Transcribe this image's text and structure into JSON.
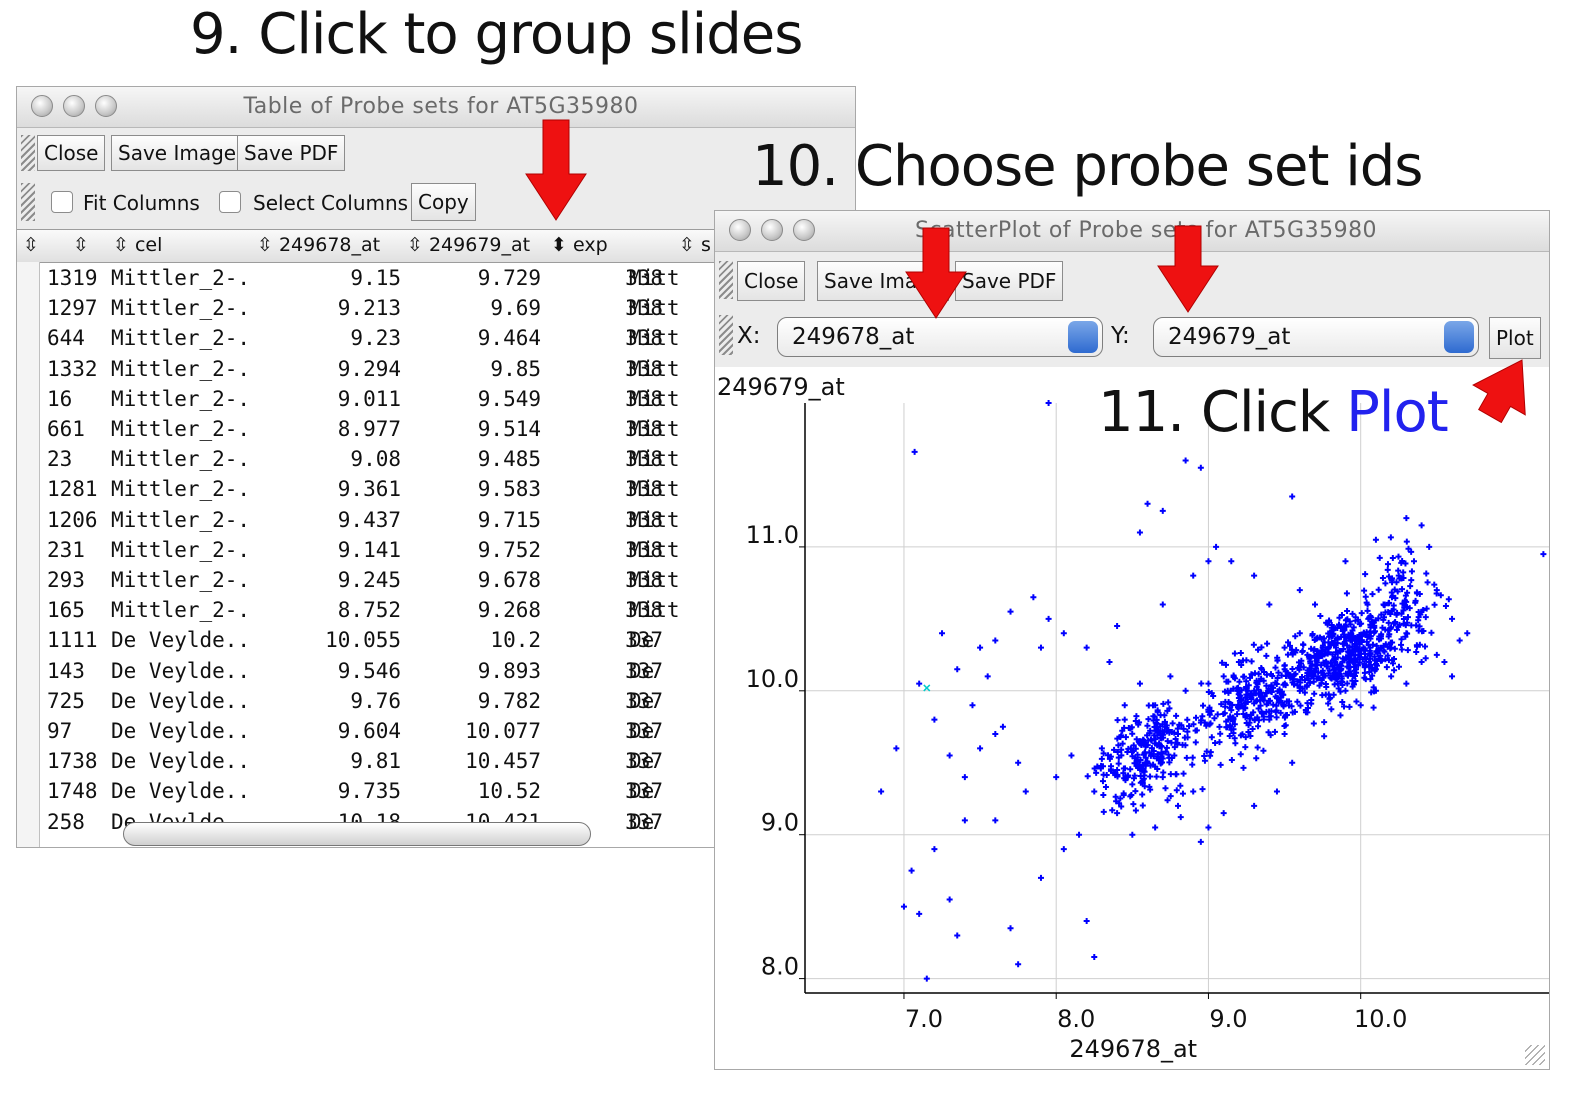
{
  "callouts": {
    "step9": "9. Click to group slides",
    "step10": "10. Choose probe set ids",
    "step11_prefix": "11. Click ",
    "step11_highlight": "Plot"
  },
  "table_window": {
    "title": "Table of Probe sets for AT5G35980",
    "toolbar": {
      "close": "Close",
      "save_image": "Save Image",
      "save_pdf": "Save PDF"
    },
    "options": {
      "fit_columns": "Fit Columns",
      "select_columns": "Select Columns",
      "copy": "Copy"
    },
    "columns": [
      "",
      "cel",
      "249678_at",
      "249679_at",
      "exp",
      "s"
    ],
    "rows": [
      [
        "1319",
        "Mittler_2-...",
        "9.15",
        "9.729",
        "338",
        "Mitt"
      ],
      [
        "1297",
        "Mittler_2-...",
        "9.213",
        "9.69",
        "338",
        "Mitt"
      ],
      [
        "644",
        "Mittler_2-...",
        "9.23",
        "9.464",
        "338",
        "Mitt"
      ],
      [
        "1332",
        "Mittler_2-...",
        "9.294",
        "9.85",
        "338",
        "Mitt"
      ],
      [
        "16",
        "Mittler_2-...",
        "9.011",
        "9.549",
        "338",
        "Mitt"
      ],
      [
        "661",
        "Mittler_2-...",
        "8.977",
        "9.514",
        "338",
        "Mitt"
      ],
      [
        "23",
        "Mittler_2-...",
        "9.08",
        "9.485",
        "338",
        "Mitt"
      ],
      [
        "1281",
        "Mittler_2-...",
        "9.361",
        "9.583",
        "338",
        "Mitt"
      ],
      [
        "1206",
        "Mittler_2-...",
        "9.437",
        "9.715",
        "338",
        "Mitt"
      ],
      [
        "231",
        "Mittler_2-...",
        "9.141",
        "9.752",
        "338",
        "Mitt"
      ],
      [
        "293",
        "Mittler_2-...",
        "9.245",
        "9.678",
        "338",
        "Mitt"
      ],
      [
        "165",
        "Mittler_2-...",
        "8.752",
        "9.268",
        "338",
        "Mitt"
      ],
      [
        "1111",
        "De Veylde...",
        "10.055",
        "10.2",
        "337",
        "De"
      ],
      [
        "143",
        "De Veylde...",
        "9.546",
        "9.893",
        "337",
        "De"
      ],
      [
        "725",
        "De Veylde...",
        "9.76",
        "9.782",
        "337",
        "De"
      ],
      [
        "97",
        "De Veylde...",
        "9.604",
        "10.077",
        "337",
        "De"
      ],
      [
        "1738",
        "De Veylde...",
        "9.81",
        "10.457",
        "337",
        "De"
      ],
      [
        "1748",
        "De Veylde...",
        "9.735",
        "10.52",
        "337",
        "De"
      ],
      [
        "258",
        "De Veylde...",
        "10.18",
        "10.421",
        "337",
        "De"
      ]
    ]
  },
  "scatter_window": {
    "title": "ScatterPlot of Probe sets for AT5G35980",
    "toolbar": {
      "close": "Close",
      "save_image": "Save Image",
      "save_pdf": "Save PDF"
    },
    "x_label": "X:",
    "x_value": "249678_at",
    "y_label": "Y:",
    "y_value": "249679_at",
    "plot_button": "Plot"
  },
  "colors": {
    "arrow": "#ee1111",
    "points": "#0000ff",
    "highlight_point": "#00cccc",
    "callout_blue": "#2222ee"
  },
  "chart_data": {
    "type": "scatter",
    "xlabel": "249678_at",
    "ylabel": "249679_at",
    "xlim": [
      6.35,
      11.25
    ],
    "ylim": [
      7.9,
      12.0
    ],
    "xticks": [
      "7.0",
      "8.0",
      "9.0",
      "10.0"
    ],
    "yticks": [
      "8.0",
      "9.0",
      "10.0",
      "11.0"
    ],
    "grid": true,
    "series": [
      {
        "points": [
          [
            9.15,
            9.729
          ],
          [
            9.213,
            9.69
          ],
          [
            9.23,
            9.464
          ],
          [
            9.294,
            9.85
          ],
          [
            9.011,
            9.549
          ],
          [
            8.977,
            9.514
          ],
          [
            9.08,
            9.485
          ],
          [
            9.361,
            9.583
          ],
          [
            9.437,
            9.715
          ],
          [
            9.141,
            9.752
          ],
          [
            9.245,
            9.678
          ],
          [
            8.752,
            9.268
          ],
          [
            10.055,
            10.2
          ],
          [
            9.546,
            9.893
          ],
          [
            9.76,
            9.782
          ],
          [
            9.604,
            10.077
          ],
          [
            9.81,
            10.457
          ],
          [
            9.735,
            10.52
          ],
          [
            10.18,
            10.421
          ],
          [
            7.07,
            11.66
          ],
          [
            7.1,
            10.05
          ],
          [
            7.2,
            9.8
          ],
          [
            7.3,
            9.55
          ],
          [
            7.45,
            9.9
          ],
          [
            7.6,
            9.7
          ],
          [
            7.55,
            10.1
          ],
          [
            7.7,
            10.55
          ],
          [
            7.8,
            9.3
          ],
          [
            7.4,
            9.1
          ],
          [
            7.2,
            8.9
          ],
          [
            7.05,
            8.75
          ],
          [
            7.1,
            8.45
          ],
          [
            7.0,
            8.5
          ],
          [
            7.3,
            8.55
          ],
          [
            6.95,
            9.6
          ],
          [
            6.85,
            9.3
          ],
          [
            7.6,
            9.1
          ],
          [
            7.9,
            8.7
          ],
          [
            7.75,
            8.1
          ],
          [
            8.25,
            8.15
          ],
          [
            8.2,
            8.4
          ],
          [
            7.7,
            8.35
          ],
          [
            7.4,
            9.4
          ],
          [
            7.5,
            9.6
          ],
          [
            7.65,
            9.75
          ],
          [
            8.0,
            9.4
          ],
          [
            8.1,
            9.55
          ],
          [
            8.3,
            9.6
          ],
          [
            8.4,
            9.45
          ],
          [
            8.5,
            9.35
          ],
          [
            8.55,
            9.65
          ],
          [
            8.6,
            9.5
          ],
          [
            8.7,
            9.4
          ],
          [
            8.45,
            9.8
          ],
          [
            8.65,
            9.9
          ],
          [
            8.8,
            9.7
          ],
          [
            8.35,
            10.2
          ],
          [
            8.05,
            10.4
          ],
          [
            8.2,
            10.3
          ],
          [
            8.4,
            10.45
          ],
          [
            8.7,
            10.6
          ],
          [
            8.9,
            10.8
          ],
          [
            9.0,
            10.9
          ],
          [
            9.05,
            11.0
          ],
          [
            9.15,
            10.9
          ],
          [
            8.7,
            11.25
          ],
          [
            8.55,
            11.1
          ],
          [
            9.2,
            10.2
          ],
          [
            9.3,
            10.0
          ],
          [
            9.35,
            10.15
          ],
          [
            9.45,
            9.95
          ],
          [
            9.5,
            10.3
          ],
          [
            9.55,
            10.1
          ],
          [
            9.6,
            10.4
          ],
          [
            9.65,
            10.25
          ],
          [
            9.7,
            10.6
          ],
          [
            9.75,
            10.3
          ],
          [
            9.85,
            10.05
          ],
          [
            9.9,
            10.45
          ],
          [
            9.95,
            10.2
          ],
          [
            10.0,
            10.35
          ],
          [
            10.05,
            10.5
          ],
          [
            10.1,
            10.15
          ],
          [
            10.15,
            10.6
          ],
          [
            10.2,
            10.3
          ],
          [
            10.25,
            10.8
          ],
          [
            10.3,
            10.4
          ],
          [
            10.35,
            10.9
          ],
          [
            10.4,
            10.55
          ],
          [
            10.45,
            11.0
          ],
          [
            10.5,
            10.7
          ],
          [
            10.55,
            10.2
          ],
          [
            10.6,
            10.5
          ],
          [
            10.65,
            10.35
          ],
          [
            10.7,
            10.4
          ],
          [
            10.3,
            11.2
          ],
          [
            10.1,
            11.05
          ],
          [
            10.4,
            11.15
          ],
          [
            9.9,
            10.9
          ],
          [
            9.6,
            10.7
          ],
          [
            9.4,
            10.6
          ],
          [
            9.3,
            10.8
          ],
          [
            9.55,
            11.35
          ],
          [
            8.85,
            11.6
          ],
          [
            8.95,
            11.55
          ],
          [
            8.6,
            11.3
          ],
          [
            8.5,
            9.0
          ],
          [
            8.65,
            9.05
          ],
          [
            8.8,
            9.2
          ],
          [
            8.9,
            9.3
          ],
          [
            8.95,
            8.95
          ],
          [
            8.4,
            9.15
          ],
          [
            8.25,
            9.3
          ],
          [
            8.15,
            9.0
          ],
          [
            8.05,
            8.9
          ],
          [
            7.9,
            10.3
          ],
          [
            7.95,
            10.5
          ],
          [
            7.85,
            10.65
          ],
          [
            7.5,
            10.3
          ],
          [
            7.35,
            10.15
          ],
          [
            7.25,
            10.4
          ],
          [
            7.6,
            10.35
          ],
          [
            7.75,
            9.5
          ],
          [
            7.35,
            8.3
          ],
          [
            7.15,
            8.0
          ],
          [
            8.45,
            9.9
          ],
          [
            8.55,
            10.05
          ],
          [
            8.75,
            10.1
          ],
          [
            8.85,
            10.0
          ],
          [
            9.0,
            10.05
          ],
          [
            9.1,
            10.1
          ],
          [
            9.2,
            9.95
          ],
          [
            9.4,
            9.8
          ],
          [
            9.5,
            9.7
          ],
          [
            9.65,
            9.85
          ],
          [
            9.8,
            9.95
          ],
          [
            9.9,
            10.0
          ],
          [
            10.0,
            9.9
          ],
          [
            10.1,
            10.0
          ],
          [
            10.2,
            10.1
          ],
          [
            10.3,
            10.05
          ],
          [
            10.4,
            10.2
          ],
          [
            10.5,
            10.25
          ],
          [
            10.6,
            10.1
          ],
          [
            9.55,
            9.5
          ],
          [
            9.45,
            9.3
          ],
          [
            9.3,
            9.2
          ],
          [
            9.1,
            9.15
          ],
          [
            9.0,
            9.05
          ],
          [
            11.2,
            10.95
          ],
          [
            6.3,
            10.2
          ],
          [
            7.95,
            12.0
          ]
        ]
      }
    ],
    "highlight_points": [
      [
        7.15,
        10.02
      ]
    ]
  }
}
